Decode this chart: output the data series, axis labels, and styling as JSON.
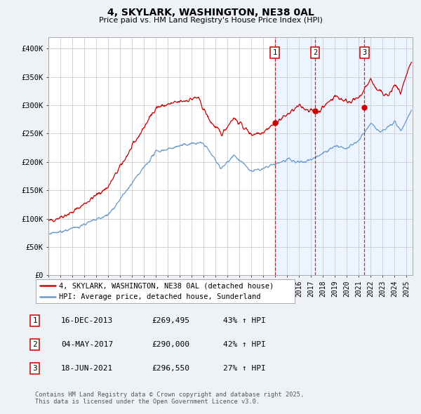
{
  "title": "4, SKYLARK, WASHINGTON, NE38 0AL",
  "subtitle": "Price paid vs. HM Land Registry's House Price Index (HPI)",
  "ylabel_ticks": [
    "£0",
    "£50K",
    "£100K",
    "£150K",
    "£200K",
    "£250K",
    "£300K",
    "£350K",
    "£400K"
  ],
  "ylim": [
    0,
    420000
  ],
  "xlim_start": 1995.0,
  "xlim_end": 2025.5,
  "sale_dates": [
    2013.958,
    2017.337,
    2021.463
  ],
  "sale_prices": [
    269495,
    290000,
    296550
  ],
  "sale_labels": [
    "1",
    "2",
    "3"
  ],
  "shade_start": 2013.958,
  "shade_end": 2025.5,
  "red_line_color": "#cc0000",
  "blue_line_color": "#6699cc",
  "shade_color": "#ddeeff",
  "vline_color": "#cc0000",
  "legend_red_label": "4, SKYLARK, WASHINGTON, NE38 0AL (detached house)",
  "legend_blue_label": "HPI: Average price, detached house, Sunderland",
  "table_rows": [
    [
      "1",
      "16-DEC-2013",
      "£269,495",
      "43% ↑ HPI"
    ],
    [
      "2",
      "04-MAY-2017",
      "£290,000",
      "42% ↑ HPI"
    ],
    [
      "3",
      "18-JUN-2021",
      "£296,550",
      "27% ↑ HPI"
    ]
  ],
  "footnote": "Contains HM Land Registry data © Crown copyright and database right 2025.\nThis data is licensed under the Open Government Licence v3.0.",
  "background_color": "#eef2f7",
  "plot_background": "#ffffff",
  "grid_color": "#cccccc"
}
